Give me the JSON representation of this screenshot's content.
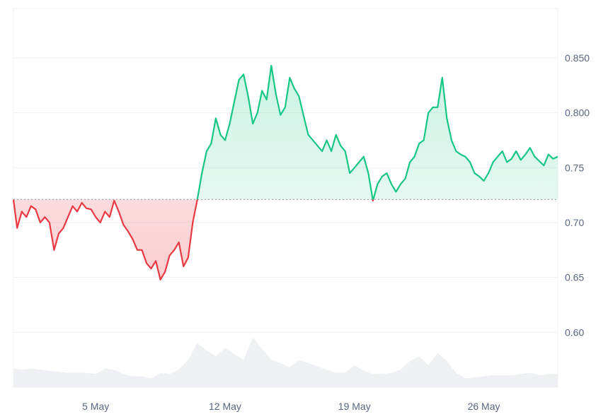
{
  "chart_data": {
    "type": "area",
    "title": "",
    "xlabel": "",
    "ylabel": "",
    "ylim": [
      0.55,
      0.895
    ],
    "y_ticks": [
      "0.850",
      "0.800",
      "0.75",
      "0.70",
      "0.65",
      "0.60"
    ],
    "y_tick_values": [
      0.85,
      0.8,
      0.75,
      0.7,
      0.65,
      0.6
    ],
    "x_ticks": [
      "5 May",
      "12 May",
      "19 May",
      "26 May"
    ],
    "x_tick_days": [
      5,
      12,
      19,
      26
    ],
    "xlim_days": [
      0.55,
      30.0
    ],
    "baseline": 0.721,
    "baseline_style": "dotted",
    "grid": "horizontal",
    "y_axis_position": "right",
    "colors": {
      "above": "#16c784",
      "below": "#ea3943",
      "above_fill": "#16c784",
      "below_fill": "#ea3943",
      "volume": "#eef0f3",
      "grid": "#eff2f5",
      "baseline": "#9aa0a6"
    },
    "series": [
      {
        "values_day": [
          0.55,
          0.75,
          1.0,
          1.25,
          1.5,
          1.75,
          2.0,
          2.25,
          2.5,
          2.75,
          3.0,
          3.25,
          3.5,
          3.75,
          4.0,
          4.25,
          4.5,
          4.75,
          5.0,
          5.25,
          5.5,
          5.75,
          6.0,
          6.25,
          6.5,
          6.75,
          7.0,
          7.25,
          7.5,
          7.75,
          8.0,
          8.25,
          8.5,
          8.75,
          9.0,
          9.25,
          9.5,
          9.75,
          10.0,
          10.25,
          10.5,
          10.75,
          11.0,
          11.25,
          11.5,
          11.75,
          12.0,
          12.25,
          12.5,
          12.75,
          13.0,
          13.25,
          13.5,
          13.75,
          14.0,
          14.25,
          14.5,
          14.75,
          15.0,
          15.25,
          15.5,
          15.75,
          16.0,
          16.25,
          16.5,
          16.75,
          17.0,
          17.25,
          17.5,
          17.75,
          18.0,
          18.25,
          18.5,
          18.75,
          19.0,
          19.25,
          19.5,
          19.75,
          20.0,
          20.25,
          20.5,
          20.75,
          21.0,
          21.25,
          21.5,
          21.75,
          22.0,
          22.25,
          22.5,
          22.75,
          23.0,
          23.25,
          23.5,
          23.75,
          24.0,
          24.25,
          24.5,
          24.75,
          25.0,
          25.25,
          25.5,
          25.75,
          26.0,
          26.25,
          26.5,
          26.75,
          27.0,
          27.25,
          27.5,
          27.75,
          28.0,
          28.25,
          28.5,
          28.75,
          29.0,
          29.25,
          29.5,
          29.75,
          30.0
        ],
        "values": [
          0.721,
          0.695,
          0.71,
          0.705,
          0.715,
          0.712,
          0.7,
          0.705,
          0.7,
          0.675,
          0.69,
          0.695,
          0.705,
          0.715,
          0.71,
          0.718,
          0.713,
          0.712,
          0.705,
          0.7,
          0.71,
          0.705,
          0.72,
          0.71,
          0.698,
          0.692,
          0.685,
          0.675,
          0.675,
          0.663,
          0.658,
          0.665,
          0.648,
          0.655,
          0.67,
          0.675,
          0.682,
          0.66,
          0.668,
          0.7,
          0.721,
          0.745,
          0.765,
          0.772,
          0.795,
          0.78,
          0.775,
          0.79,
          0.81,
          0.83,
          0.835,
          0.815,
          0.79,
          0.8,
          0.82,
          0.812,
          0.843,
          0.817,
          0.798,
          0.805,
          0.832,
          0.822,
          0.815,
          0.797,
          0.78,
          0.775,
          0.77,
          0.765,
          0.775,
          0.765,
          0.78,
          0.77,
          0.765,
          0.745,
          0.75,
          0.755,
          0.76,
          0.745,
          0.72,
          0.735,
          0.742,
          0.745,
          0.735,
          0.728,
          0.735,
          0.74,
          0.755,
          0.76,
          0.772,
          0.775,
          0.8,
          0.805,
          0.805,
          0.832,
          0.795,
          0.775,
          0.765,
          0.762,
          0.76,
          0.755,
          0.745,
          0.742,
          0.738,
          0.745,
          0.755,
          0.76,
          0.765,
          0.755,
          0.758,
          0.765,
          0.757,
          0.762,
          0.768,
          0.76,
          0.756,
          0.752,
          0.762,
          0.758,
          0.76
        ]
      }
    ],
    "volume": {
      "values_day": [
        0.55,
        1.0,
        1.5,
        2.0,
        2.5,
        3.0,
        3.5,
        4.0,
        4.5,
        5.0,
        5.5,
        6.0,
        6.5,
        7.0,
        7.5,
        8.0,
        8.5,
        9.0,
        9.5,
        10.0,
        10.5,
        11.0,
        11.5,
        12.0,
        12.5,
        13.0,
        13.5,
        14.0,
        14.5,
        15.0,
        15.5,
        16.0,
        16.5,
        17.0,
        17.5,
        18.0,
        18.5,
        19.0,
        19.5,
        20.0,
        20.5,
        21.0,
        21.5,
        22.0,
        22.5,
        23.0,
        23.5,
        24.0,
        24.5,
        25.0,
        25.5,
        26.0,
        26.5,
        27.0,
        27.5,
        28.0,
        28.5,
        29.0,
        29.5,
        30.0
      ],
      "values": [
        0.567,
        0.566,
        0.567,
        0.566,
        0.565,
        0.564,
        0.563,
        0.563,
        0.563,
        0.562,
        0.567,
        0.566,
        0.562,
        0.56,
        0.56,
        0.558,
        0.563,
        0.562,
        0.566,
        0.575,
        0.59,
        0.584,
        0.578,
        0.586,
        0.58,
        0.575,
        0.595,
        0.585,
        0.575,
        0.572,
        0.568,
        0.575,
        0.572,
        0.569,
        0.566,
        0.563,
        0.563,
        0.57,
        0.565,
        0.562,
        0.562,
        0.563,
        0.566,
        0.574,
        0.578,
        0.57,
        0.581,
        0.574,
        0.563,
        0.558,
        0.559,
        0.56,
        0.561,
        0.561,
        0.561,
        0.562,
        0.563,
        0.561,
        0.562,
        0.562
      ]
    }
  }
}
